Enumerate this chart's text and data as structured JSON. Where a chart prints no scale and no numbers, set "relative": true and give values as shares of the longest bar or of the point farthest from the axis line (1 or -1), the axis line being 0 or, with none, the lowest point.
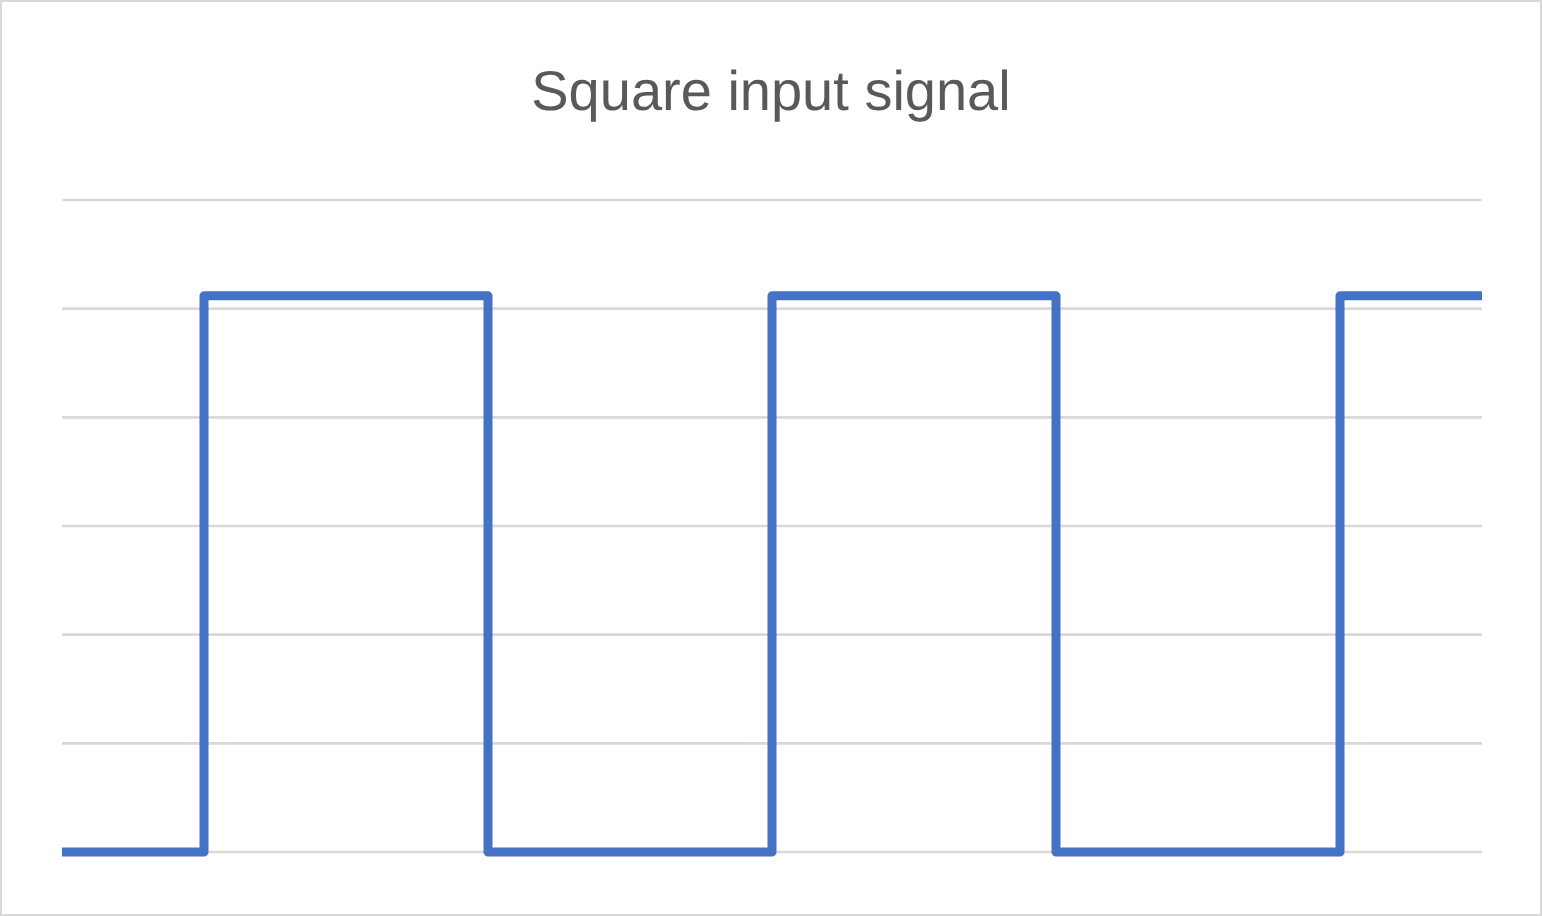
{
  "chart_data": {
    "type": "step",
    "title": "Square input signal",
    "relative": true,
    "categories": [
      null,
      null,
      null,
      null,
      null,
      null,
      null,
      null,
      null,
      null,
      null
    ],
    "series": [
      {
        "color": "#4472c4",
        "values": [
          0,
          1,
          1,
          0,
          0,
          1,
          1,
          0,
          0,
          1,
          1
        ]
      }
    ],
    "grid": "y"
  }
}
